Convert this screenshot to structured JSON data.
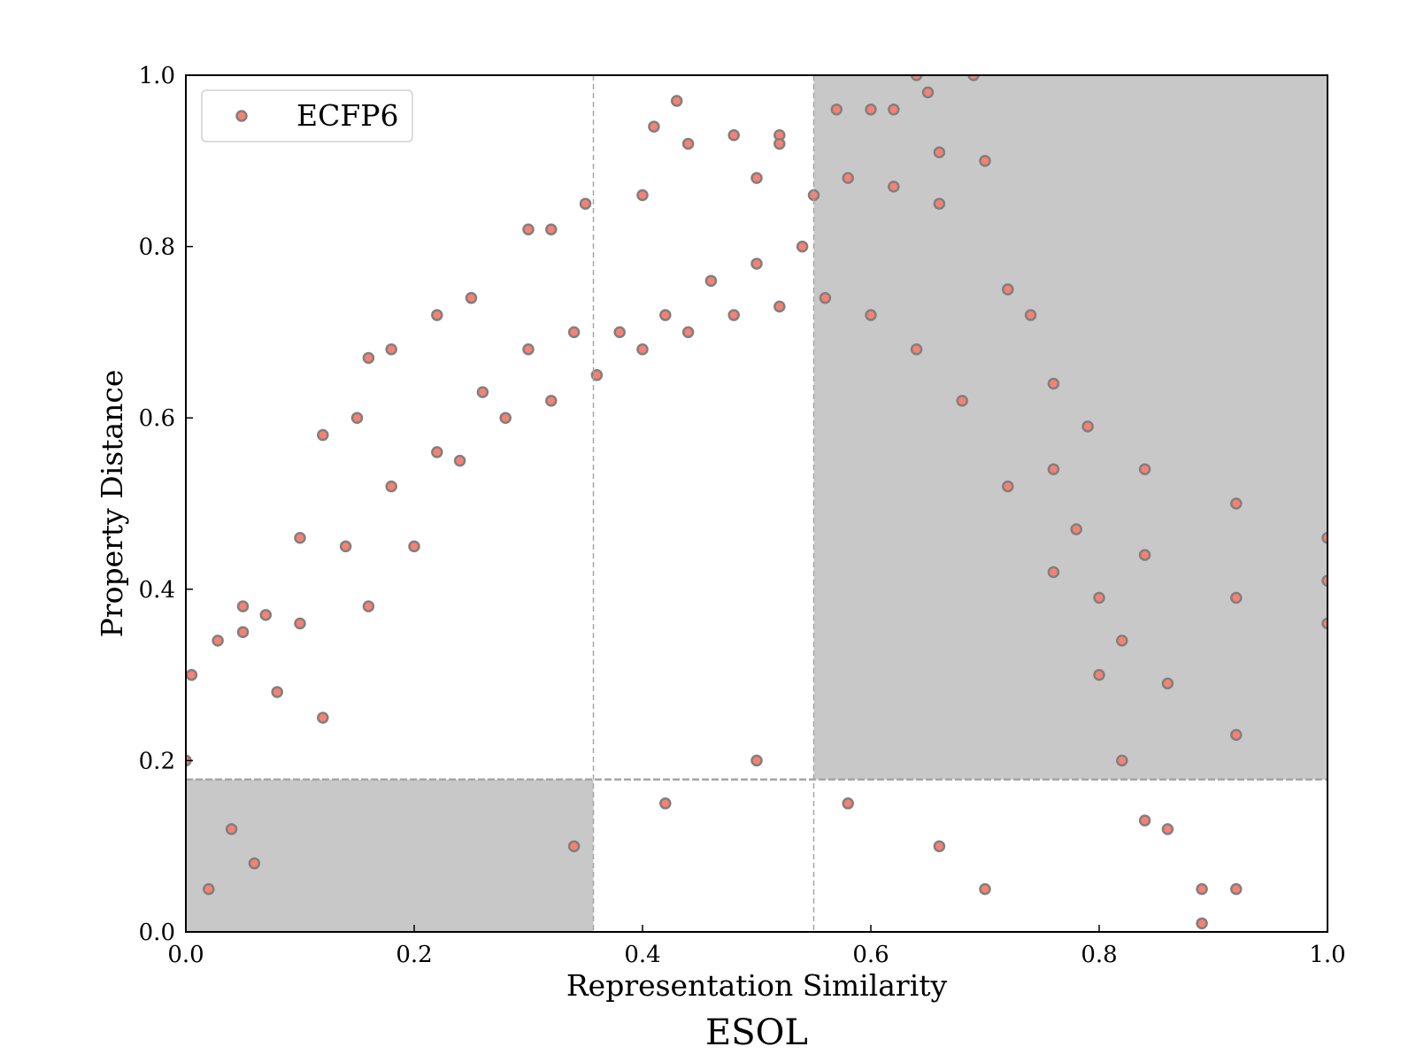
{
  "chart_data": {
    "type": "scatter",
    "title": "ESOL",
    "xlabel": "Representation Similarity",
    "ylabel": "Property Distance",
    "xlim": [
      0.0,
      1.0
    ],
    "ylim": [
      0.0,
      1.0
    ],
    "xticks": [
      "0.0",
      "0.2",
      "0.4",
      "0.6",
      "0.8",
      "1.0"
    ],
    "yticks": [
      "0.0",
      "0.2",
      "0.4",
      "0.6",
      "0.8",
      "1.0"
    ],
    "legend": {
      "placement": "upper-left",
      "entries": [
        "ECFP6"
      ]
    },
    "grid": false,
    "colors": {
      "marker_fill": "#fa8072",
      "marker_edge": "#808080",
      "shaded_region": "#c8c8c8",
      "reference_line": "#a6a6a6"
    },
    "reference_lines": {
      "vertical_x": [
        0.357,
        0.55
      ],
      "horizontal_y": [
        0.178
      ]
    },
    "shaded_regions": [
      {
        "x": [
          0.0,
          0.357
        ],
        "y": [
          0.0,
          0.178
        ]
      },
      {
        "x": [
          0.55,
          1.0
        ],
        "y": [
          0.178,
          1.0
        ]
      }
    ],
    "series": [
      {
        "name": "ECFP6",
        "x": [
          0.0,
          0.005,
          0.028,
          0.05,
          0.05,
          0.07,
          0.1,
          0.16,
          0.12,
          0.18,
          0.22,
          0.15,
          0.25,
          0.3,
          0.32,
          0.35,
          0.4,
          0.41,
          0.43,
          0.44,
          0.48,
          0.5,
          0.52,
          0.52,
          0.55,
          0.57,
          0.6,
          0.62,
          0.64,
          0.65,
          0.66,
          0.69,
          0.7,
          0.72,
          0.76,
          0.79,
          0.84,
          0.84,
          0.92,
          0.92,
          0.92,
          1.0,
          1.0,
          1.0,
          0.86,
          0.86,
          0.89,
          0.89,
          0.92,
          0.84,
          0.82,
          0.8,
          0.78,
          0.76,
          0.74,
          0.72,
          0.66,
          0.62,
          0.58,
          0.54,
          0.5,
          0.46,
          0.42,
          0.38,
          0.34,
          0.3,
          0.26,
          0.22,
          0.18,
          0.14,
          0.1,
          0.08,
          0.04,
          0.02,
          0.06,
          0.12,
          0.16,
          0.2,
          0.24,
          0.28,
          0.32,
          0.36,
          0.4,
          0.44,
          0.48,
          0.52,
          0.56,
          0.6,
          0.64,
          0.68,
          0.72,
          0.76,
          0.8,
          0.82,
          0.7,
          0.66,
          0.58,
          0.5,
          0.42,
          0.34
        ],
        "y": [
          0.2,
          0.3,
          0.34,
          0.38,
          0.35,
          0.37,
          0.46,
          0.67,
          0.58,
          0.68,
          0.72,
          0.6,
          0.74,
          0.82,
          0.82,
          0.85,
          0.86,
          0.94,
          0.97,
          0.92,
          0.93,
          0.88,
          0.93,
          0.92,
          0.86,
          0.96,
          0.96,
          0.96,
          1.0,
          0.98,
          0.91,
          1.0,
          0.9,
          0.75,
          0.64,
          0.59,
          0.54,
          0.44,
          0.5,
          0.39,
          0.23,
          0.46,
          0.41,
          0.36,
          0.29,
          0.12,
          0.05,
          0.01,
          0.05,
          0.13,
          0.34,
          0.39,
          0.47,
          0.54,
          0.72,
          0.75,
          0.85,
          0.87,
          0.88,
          0.8,
          0.78,
          0.76,
          0.72,
          0.7,
          0.7,
          0.68,
          0.63,
          0.56,
          0.52,
          0.45,
          0.36,
          0.28,
          0.12,
          0.05,
          0.08,
          0.25,
          0.38,
          0.45,
          0.55,
          0.6,
          0.62,
          0.65,
          0.68,
          0.7,
          0.72,
          0.73,
          0.74,
          0.72,
          0.68,
          0.62,
          0.52,
          0.42,
          0.3,
          0.2,
          0.05,
          0.1,
          0.15,
          0.2,
          0.15,
          0.1
        ]
      }
    ]
  }
}
